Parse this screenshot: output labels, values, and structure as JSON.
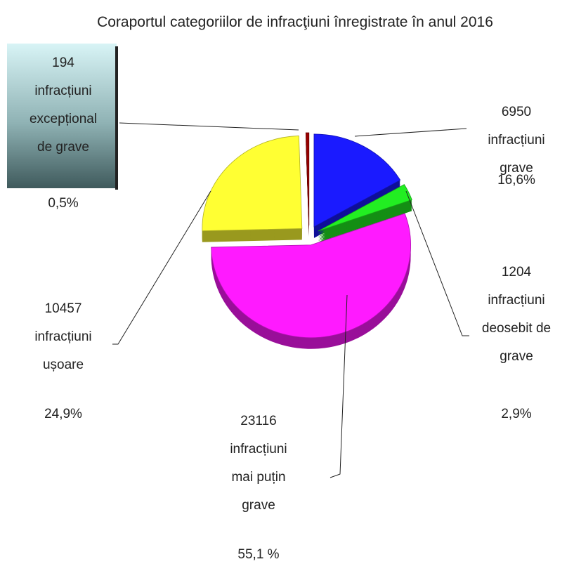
{
  "chart_data": {
    "type": "pie",
    "title": "Coraportul categoriilor de infracţiuni înregistrate în anul 2016",
    "categories": [
      [
        "infracțiuni",
        "grave"
      ],
      [
        "infracțiuni",
        "deosebit de",
        "grave"
      ],
      [
        "infracțiuni",
        "mai puțin",
        "grave"
      ],
      [
        "infracțiuni",
        "ușoare"
      ],
      [
        "infracțiuni",
        "excepțional",
        "de grave"
      ]
    ],
    "counts": [
      6950,
      1204,
      23116,
      10457,
      194
    ],
    "values": [
      16.6,
      2.9,
      55.1,
      24.9,
      0.5
    ],
    "value_labels": [
      "16,6%",
      "2,9%",
      "55,1 %",
      "24,9%",
      "0,5%"
    ],
    "colors": [
      "#1a1aff",
      "#22ee22",
      "#ff1aff",
      "#ffff33",
      "#990000"
    ]
  }
}
